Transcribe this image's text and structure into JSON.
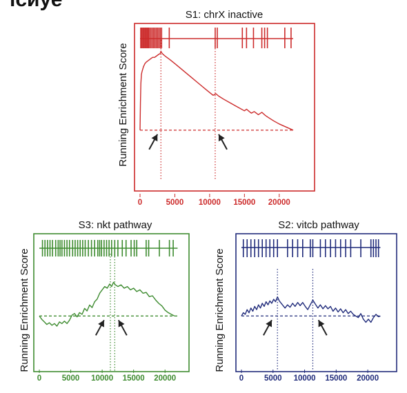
{
  "corner_text": "ıсиуе",
  "chart_data": [
    {
      "id": "s1",
      "type": "line",
      "title": "S1: chrX inactive",
      "ylabel": "Running Enrichment Score",
      "color": "#cc2a2a",
      "xlim": [
        0,
        22500
      ],
      "ylim": [
        -0.05,
        0.6
      ],
      "xticks": [
        0,
        5000,
        10000,
        15000,
        20000
      ],
      "xtick_labels": [
        "0",
        "5000",
        "10000",
        "15000",
        "20000"
      ],
      "grid": false,
      "series": [
        {
          "x": [
            0,
            60,
            120,
            200,
            300,
            500,
            700,
            900,
            1200,
            1500,
            1800,
            2100,
            2400,
            2700,
            2900,
            3000,
            3100,
            3300,
            3700,
            4300,
            5000,
            5800,
            6600,
            7400,
            8200,
            9000,
            9800,
            10500,
            10700,
            10900,
            11300,
            12000,
            13000,
            14000,
            15000,
            15300,
            15700,
            16000,
            16400,
            17000,
            17500,
            18000,
            18500,
            19200,
            20000,
            21000,
            22000
          ],
          "y": [
            0.0,
            0.18,
            0.3,
            0.36,
            0.38,
            0.41,
            0.43,
            0.44,
            0.45,
            0.46,
            0.47,
            0.47,
            0.48,
            0.49,
            0.495,
            0.51,
            0.5,
            0.49,
            0.475,
            0.455,
            0.43,
            0.4,
            0.37,
            0.34,
            0.31,
            0.28,
            0.25,
            0.225,
            0.23,
            0.235,
            0.22,
            0.2,
            0.175,
            0.15,
            0.125,
            0.135,
            0.12,
            0.11,
            0.12,
            0.1,
            0.115,
            0.095,
            0.08,
            0.06,
            0.04,
            0.02,
            0.0
          ]
        }
      ],
      "hits": [
        100,
        250,
        400,
        550,
        700,
        850,
        1000,
        1150,
        1300,
        1500,
        1700,
        1900,
        2100,
        2300,
        2500,
        2700,
        2900,
        3100,
        4200,
        10800,
        11100,
        14700,
        15300,
        16300,
        17500,
        17900,
        18300,
        20800,
        21700
      ],
      "vlines": [
        3000,
        10800
      ],
      "arrows": [
        2500,
        11300
      ]
    },
    {
      "id": "s3",
      "type": "line",
      "title": "S3: nkt pathway",
      "ylabel": "Running Enrichment Score",
      "color": "#3d8b2f",
      "xlim": [
        0,
        22500
      ],
      "ylim": [
        -0.3,
        0.6
      ],
      "xticks": [
        0,
        5000,
        10000,
        15000,
        20000
      ],
      "xtick_labels": [
        "0",
        "5000",
        "10000",
        "15000",
        "20000"
      ],
      "grid": false,
      "series": [
        {
          "x": [
            0,
            400,
            800,
            1200,
            1600,
            2000,
            2400,
            2800,
            3200,
            3600,
            4000,
            4400,
            4800,
            5200,
            5600,
            6000,
            6400,
            6800,
            7200,
            7600,
            8000,
            8400,
            8800,
            9200,
            9600,
            10000,
            10400,
            10800,
            11200,
            11500,
            11800,
            12100,
            12500,
            13000,
            13500,
            14000,
            14500,
            15000,
            15500,
            16000,
            16500,
            17000,
            17500,
            18000,
            18500,
            19000,
            19500,
            20000,
            20500,
            21000,
            21500
          ],
          "y": [
            0.0,
            -0.04,
            -0.07,
            -0.1,
            -0.08,
            -0.11,
            -0.09,
            -0.12,
            -0.07,
            -0.09,
            -0.06,
            -0.09,
            -0.05,
            0.01,
            0.03,
            -0.01,
            0.04,
            0.02,
            0.09,
            0.06,
            0.13,
            0.1,
            0.17,
            0.2,
            0.27,
            0.31,
            0.35,
            0.33,
            0.38,
            0.35,
            0.4,
            0.37,
            0.35,
            0.37,
            0.33,
            0.35,
            0.31,
            0.33,
            0.29,
            0.31,
            0.27,
            0.28,
            0.23,
            0.24,
            0.19,
            0.15,
            0.12,
            0.07,
            0.04,
            0.02,
            0.0
          ]
        }
      ],
      "hits": [
        500,
        900,
        1300,
        1700,
        2100,
        2600,
        3000,
        3300,
        3600,
        4000,
        4400,
        4800,
        5300,
        5700,
        6100,
        6500,
        6900,
        7300,
        7800,
        8300,
        8800,
        9300,
        9600,
        9900,
        10300,
        10700,
        11100,
        11500,
        12000,
        12500,
        13200,
        13800,
        14600,
        15100,
        15500,
        17000,
        17400,
        19100,
        20700,
        21300
      ],
      "vlines": [
        11300,
        12000
      ],
      "arrows": [
        10300,
        12600
      ]
    },
    {
      "id": "s2",
      "type": "line",
      "title": "S2: vitcb pathway",
      "ylabel": "Running Enrichment Score",
      "color": "#1f2a7a",
      "xlim": [
        0,
        22500
      ],
      "ylim": [
        -0.45,
        0.55
      ],
      "xticks": [
        0,
        5000,
        10000,
        15000,
        20000
      ],
      "xtick_labels": [
        "0",
        "5000",
        "10000",
        "15000",
        "20000"
      ],
      "grid": false,
      "series": [
        {
          "x": [
            0,
            300,
            600,
            900,
            1200,
            1500,
            1800,
            2100,
            2400,
            2700,
            3000,
            3300,
            3600,
            3900,
            4200,
            4500,
            4800,
            5100,
            5400,
            5700,
            6000,
            6300,
            6600,
            6900,
            7300,
            7700,
            8100,
            8500,
            8900,
            9300,
            9700,
            10100,
            10500,
            10900,
            11300,
            11700,
            12100,
            12500,
            12900,
            13300,
            13700,
            14100,
            14500,
            14900,
            15300,
            15700,
            16100,
            16500,
            16900,
            17300,
            17700,
            18100,
            18500,
            18900,
            19300,
            19700,
            20100,
            20500,
            20900,
            21300,
            21700,
            22000
          ],
          "y": [
            0.0,
            0.04,
            0.02,
            0.08,
            0.04,
            0.1,
            0.06,
            0.12,
            0.08,
            0.14,
            0.1,
            0.16,
            0.12,
            0.18,
            0.14,
            0.19,
            0.16,
            0.21,
            0.18,
            0.24,
            0.19,
            0.16,
            0.13,
            0.1,
            0.14,
            0.11,
            0.16,
            0.12,
            0.17,
            0.13,
            0.17,
            0.12,
            0.08,
            0.14,
            0.2,
            0.15,
            0.1,
            0.14,
            0.09,
            0.13,
            0.09,
            0.12,
            0.06,
            0.1,
            0.05,
            0.09,
            0.04,
            0.08,
            0.03,
            0.06,
            0.02,
            0.0,
            -0.02,
            0.03,
            -0.04,
            -0.08,
            -0.04,
            -0.08,
            -0.02,
            0.02,
            -0.01,
            0.0
          ]
        }
      ],
      "hits": [
        300,
        900,
        1500,
        2100,
        2700,
        3300,
        3900,
        4500,
        5100,
        5700,
        7300,
        8100,
        8900,
        9700,
        10900,
        11300,
        12500,
        13300,
        14100,
        14900,
        15700,
        16500,
        17300,
        18900,
        20500,
        20900,
        21300,
        21700
      ],
      "vlines": [
        5700,
        11300
      ],
      "arrows": [
        4800,
        12200
      ]
    }
  ]
}
